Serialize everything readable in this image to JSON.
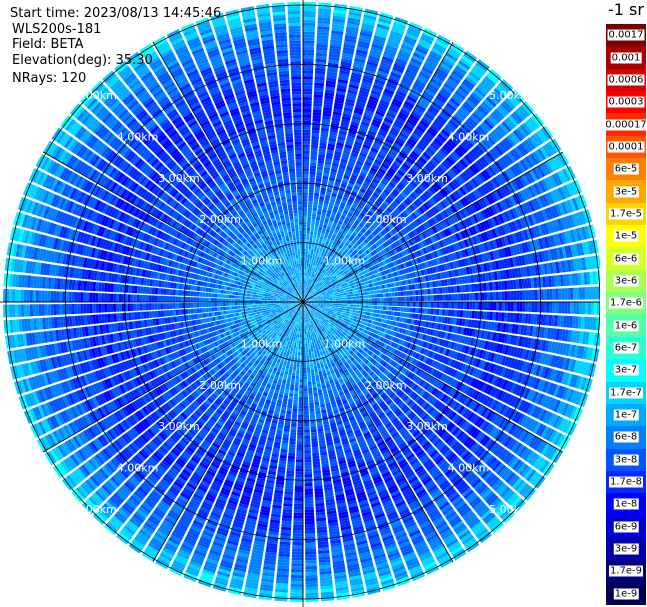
{
  "header": {
    "start_time": "Start time: 2023/08/13 14:45:46",
    "instrument": "WLS200s-181",
    "field": "Field: BETA",
    "elevation": "Elevation(deg): 35.30",
    "nrays": "NRays: 120"
  },
  "colorbar": {
    "unit_label": "-1 sr",
    "entries": [
      {
        "label": "0.0017",
        "color": "#7a0000"
      },
      {
        "label": "0.001",
        "color": "#a80000"
      },
      {
        "label": "0.0006",
        "color": "#d40000"
      },
      {
        "label": "0.0003",
        "color": "#ff0000"
      },
      {
        "label": "0.00017",
        "color": "#ff2a00"
      },
      {
        "label": "0.0001",
        "color": "#ff5500"
      },
      {
        "label": "6e-5",
        "color": "#ff8000"
      },
      {
        "label": "3e-5",
        "color": "#ffa800"
      },
      {
        "label": "1.7e-5",
        "color": "#ffd400"
      },
      {
        "label": "1e-5",
        "color": "#ffff00"
      },
      {
        "label": "6e-6",
        "color": "#d4ff2a"
      },
      {
        "label": "3e-6",
        "color": "#aaff55"
      },
      {
        "label": "1.7e-6",
        "color": "#80ff80"
      },
      {
        "label": "1e-6",
        "color": "#55ffaa"
      },
      {
        "label": "6e-7",
        "color": "#2affd4"
      },
      {
        "label": "3e-7",
        "color": "#00ffff"
      },
      {
        "label": "1.7e-7",
        "color": "#00d4ff"
      },
      {
        "label": "1e-7",
        "color": "#00aaff"
      },
      {
        "label": "6e-8",
        "color": "#0080ff"
      },
      {
        "label": "3e-8",
        "color": "#0055ff"
      },
      {
        "label": "1.7e-8",
        "color": "#002aff"
      },
      {
        "label": "1e-8",
        "color": "#0000ff"
      },
      {
        "label": "6e-9",
        "color": "#0000d4"
      },
      {
        "label": "3e-9",
        "color": "#0000aa"
      },
      {
        "label": "1.7e-9",
        "color": "#000080"
      },
      {
        "label": "1e-9",
        "color": "#000055"
      }
    ]
  },
  "chart_data": {
    "type": "heatmap",
    "projection": "polar-ppi",
    "field": "BETA",
    "elevation_deg": 35.3,
    "n_rays": 120,
    "range_rings_km": [
      1.0,
      2.0,
      3.0,
      4.0,
      5.0
    ],
    "ring_labels": [
      "1.00km",
      "2.00km",
      "3.00km",
      "4.00km",
      "5.00km"
    ],
    "max_range_km": 5.05,
    "spokes_deg": [
      0,
      30,
      60,
      90,
      120,
      150,
      180,
      210,
      240,
      270,
      300,
      330
    ],
    "color_scale": "log",
    "value_range": [
      1e-09,
      0.0017
    ],
    "radial_profile_log10": [
      {
        "range_km": 0.1,
        "log10_beta": -7.0
      },
      {
        "range_km": 1.0,
        "log10_beta": -7.1
      },
      {
        "range_km": 2.0,
        "log10_beta": -7.55
      },
      {
        "range_km": 3.5,
        "log10_beta": -7.8
      },
      {
        "range_km": 4.5,
        "log10_beta": -7.3
      },
      {
        "range_km": 5.0,
        "log10_beta": -6.7
      }
    ]
  }
}
